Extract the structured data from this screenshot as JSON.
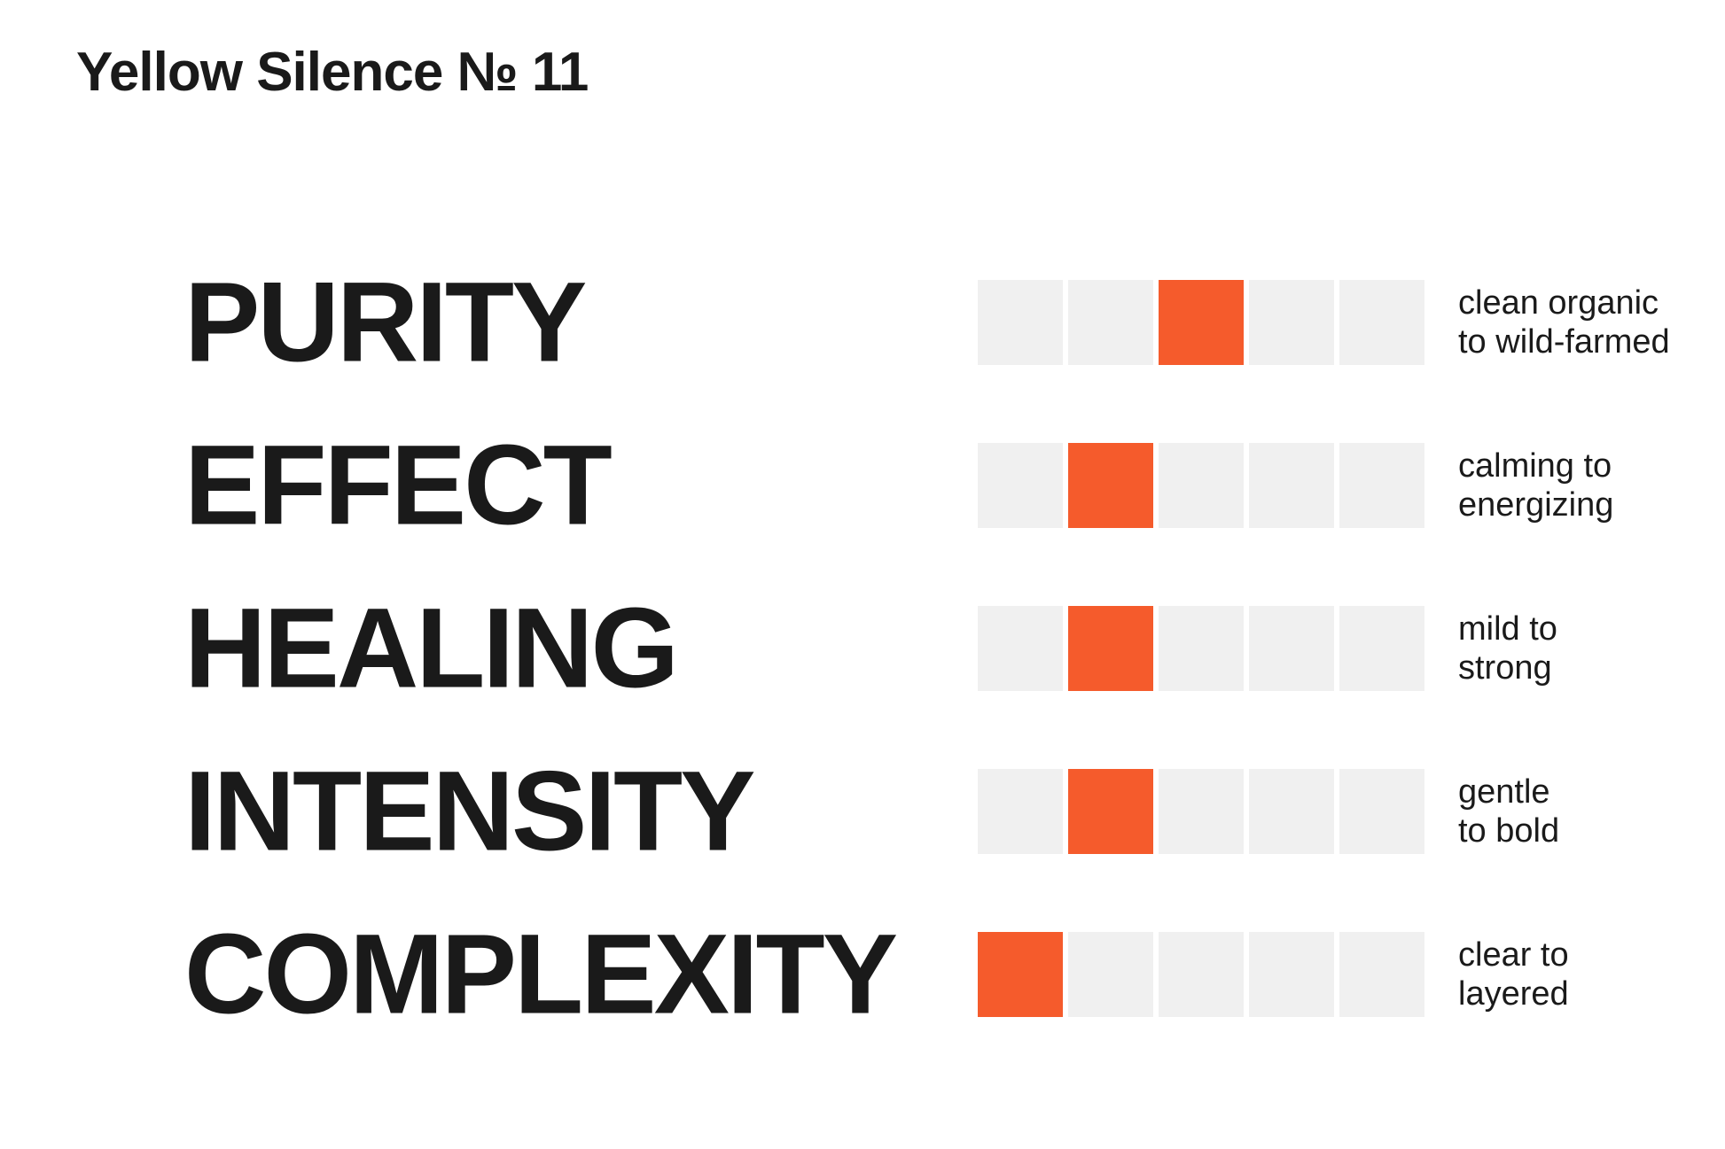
{
  "title": "Yellow Silence № 11",
  "scale": {
    "segments": 5
  },
  "colors": {
    "accent": "#f55b2c",
    "track": "#f0f0f0",
    "text": "#1a1a1a",
    "background": "#ffffff"
  },
  "attributes": [
    {
      "name": "PURITY",
      "value": 3,
      "range_line1": "clean organic",
      "range_line2": "to wild-farmed"
    },
    {
      "name": "EFFECT",
      "value": 2,
      "range_line1": "calming to",
      "range_line2": "energizing"
    },
    {
      "name": "HEALING",
      "value": 2,
      "range_line1": "mild to",
      "range_line2": "strong"
    },
    {
      "name": "INTENSITY",
      "value": 2,
      "range_line1": "gentle",
      "range_line2": "to bold"
    },
    {
      "name": "COMPLEXITY",
      "value": 1,
      "range_line1": "clear to",
      "range_line2": "layered"
    }
  ],
  "chart_data": {
    "type": "bar",
    "title": "Yellow Silence № 11",
    "categories": [
      "PURITY",
      "EFFECT",
      "HEALING",
      "INTENSITY",
      "COMPLEXITY"
    ],
    "values": [
      3,
      2,
      2,
      2,
      1
    ],
    "value_scale": [
      1,
      5
    ],
    "segment_count": 5,
    "annotations": [
      "clean organic to wild-farmed",
      "calming to energizing",
      "mild to strong",
      "gentle to bold",
      "clear to layered"
    ],
    "legend_position": "none",
    "grid": false
  }
}
